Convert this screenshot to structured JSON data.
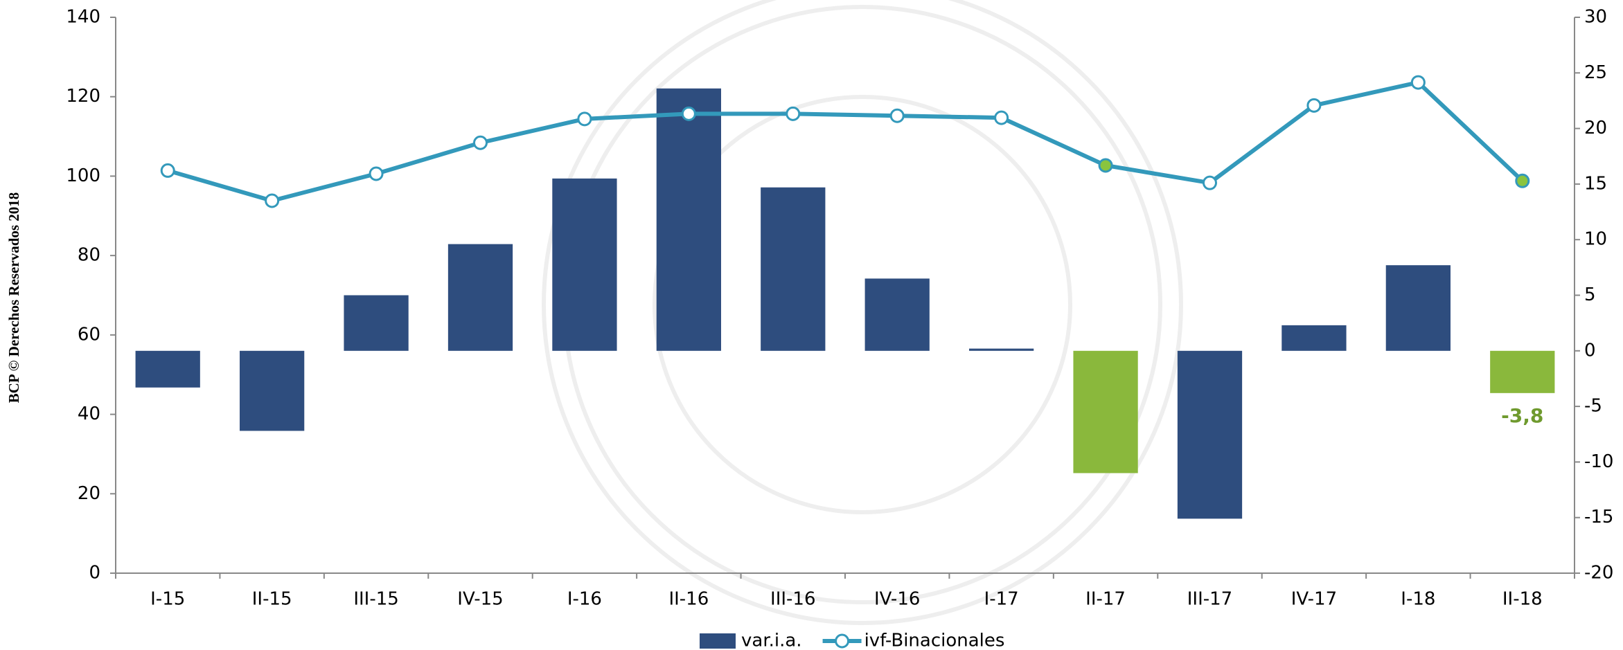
{
  "side_note": "BCP © Derechos Reservados 2018",
  "chart_data": {
    "type": "bar-line",
    "categories": [
      "I-15",
      "II-15",
      "III-15",
      "IV-15",
      "I-16",
      "II-16",
      "III-16",
      "IV-16",
      "I-17",
      "II-17",
      "III-17",
      "IV-17",
      "I-18",
      "II-18"
    ],
    "series": [
      {
        "name": "var.i.a.",
        "type": "bar",
        "axis": "y2",
        "color": "#2e4d7e",
        "colors": [
          "#2e4d7e",
          "#2e4d7e",
          "#2e4d7e",
          "#2e4d7e",
          "#2e4d7e",
          "#2e4d7e",
          "#2e4d7e",
          "#2e4d7e",
          "#2e4d7e",
          "#8ab83c",
          "#2e4d7e",
          "#2e4d7e",
          "#2e4d7e",
          "#8ab83c"
        ],
        "values": [
          -3.3,
          -7.2,
          5.0,
          9.6,
          15.5,
          23.6,
          14.7,
          6.5,
          0.2,
          -11.0,
          -15.1,
          2.3,
          7.7,
          -3.8
        ],
        "value_labels": [
          null,
          null,
          null,
          null,
          null,
          null,
          null,
          null,
          null,
          null,
          null,
          null,
          null,
          "-3,8"
        ],
        "value_label_color": "#6f9a2e"
      },
      {
        "name": "ivf-Binacionales",
        "type": "line",
        "axis": "y",
        "color": "#3399bb",
        "marker_fills": [
          "#ffffff",
          "#ffffff",
          "#ffffff",
          "#ffffff",
          "#ffffff",
          "#ffffff",
          "#ffffff",
          "#ffffff",
          "#ffffff",
          "#8ac43f",
          "#ffffff",
          "#ffffff",
          "#ffffff",
          "#8ac43f"
        ],
        "values": [
          101.4,
          93.8,
          100.6,
          108.4,
          114.4,
          115.7,
          115.7,
          115.2,
          114.7,
          102.7,
          98.3,
          117.8,
          123.6,
          98.8
        ]
      }
    ],
    "ylim": [
      0,
      140
    ],
    "yticks": [
      0,
      20,
      40,
      60,
      80,
      100,
      120,
      140
    ],
    "y2lim": [
      -20,
      30
    ],
    "y2ticks": [
      -20,
      -15,
      -10,
      -5,
      0,
      5,
      10,
      15,
      20,
      25,
      30
    ],
    "legend": "bottom"
  }
}
